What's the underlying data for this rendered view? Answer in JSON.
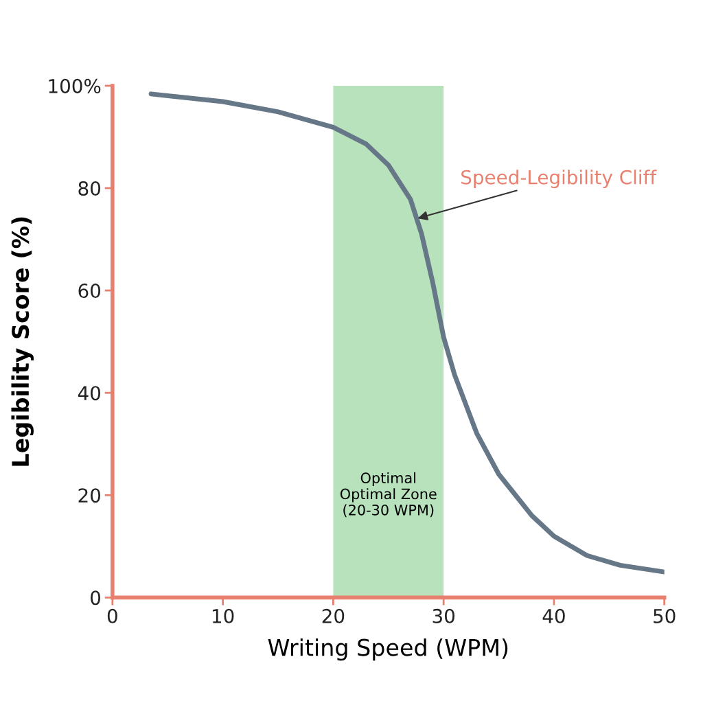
{
  "chart_data": {
    "type": "line",
    "xlabel": "Writing Speed (WPM)",
    "ylabel": "Legibility Score (%)",
    "x": [
      3.5,
      10,
      15,
      20,
      23,
      25,
      27,
      28,
      29,
      30,
      31,
      33,
      35,
      38,
      40,
      43,
      46,
      50
    ],
    "series": [
      {
        "color": "#667788",
        "values": [
          98.4,
          96.9,
          94.9,
          91.9,
          88.6,
          84.5,
          77.8,
          71.1,
          61.7,
          50.9,
          43.5,
          32.1,
          24.1,
          16.0,
          12.0,
          8.2,
          6.3,
          5.0
        ]
      }
    ],
    "xlim": [
      0,
      50
    ],
    "xticks": [
      0,
      10,
      20,
      30,
      40,
      50
    ],
    "ylim": [
      0,
      100
    ],
    "yticks": [
      0,
      20,
      40,
      60,
      80,
      {
        "value": 100,
        "label": "100%"
      }
    ],
    "bands": [
      {
        "axis": "x",
        "from": 20,
        "to": 30,
        "label": "Optimal\nOptimal Zone\n(20-30 WPM)",
        "color": "#b8e2bb"
      }
    ],
    "annotations": [
      {
        "text": "Speed-Legibility Cliff",
        "x": 27.5,
        "y": 74
      }
    ],
    "grid": false,
    "legend": false,
    "marker": "none",
    "line_style": "solid"
  }
}
